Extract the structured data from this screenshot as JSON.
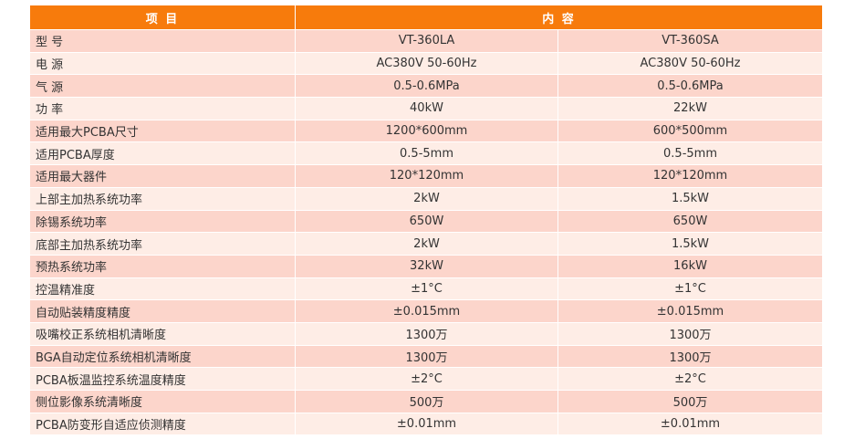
{
  "header": {
    "item": "项 目",
    "content": "内 容"
  },
  "rows": [
    [
      "型 号",
      "VT-360LA",
      "VT-360SA"
    ],
    [
      "电 源",
      "AC380V 50-60Hz",
      "AC380V 50-60Hz"
    ],
    [
      "气 源",
      "0.5-0.6MPa",
      "0.5-0.6MPa"
    ],
    [
      "功 率",
      "40kW",
      "22kW"
    ],
    [
      "适用最大PCBA尺寸",
      "1200*600mm",
      "600*500mm"
    ],
    [
      "适用PCBA厚度",
      "0.5-5mm",
      "0.5-5mm"
    ],
    [
      "适用最大器件",
      "120*120mm",
      "120*120mm"
    ],
    [
      "上部主加热系统功率",
      "2kW",
      "1.5kW"
    ],
    [
      "除锡系统功率",
      "650W",
      "650W"
    ],
    [
      "底部主加热系统功率",
      "2kW",
      "1.5kW"
    ],
    [
      "预热系统功率",
      "32kW",
      "16kW"
    ],
    [
      "控温精准度",
      "±1°C",
      "±1°C"
    ],
    [
      "自动贴装精度精度",
      "±0.015mm",
      "±0.015mm"
    ],
    [
      "吸嘴校正系统相机清晰度",
      "1300万",
      "1300万"
    ],
    [
      "BGA自动定位系统相机清晰度",
      "1300万",
      "1300万"
    ],
    [
      "PCBA板温监控系统温度精度",
      "±2°C",
      "±2°C"
    ],
    [
      "侧位影像系统清晰度",
      "500万",
      "500万"
    ],
    [
      "PCBA防变形自适应侦测精度",
      "±0.01mm",
      "±0.01mm"
    ]
  ],
  "colors": {
    "header": "#f77b0c",
    "row_odd": "#fcd5cb",
    "row_even": "#feede6"
  }
}
